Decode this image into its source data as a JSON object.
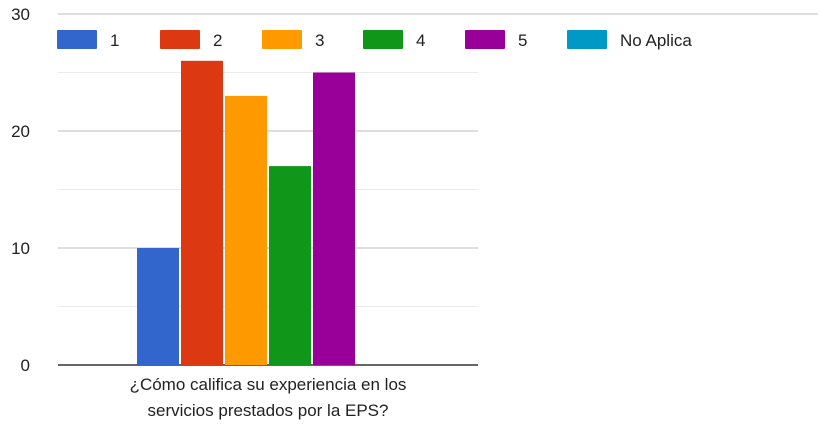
{
  "chart_data": {
    "type": "bar",
    "categories": [
      "¿Cómo califica su experiencia en los servicios prestados por la EPS?"
    ],
    "category_label_lines": [
      "¿Cómo califica su experiencia en los",
      "servicios prestados por la EPS?"
    ],
    "series": [
      {
        "name": "1",
        "values": [
          10
        ],
        "color": "#3366cc"
      },
      {
        "name": "2",
        "values": [
          26
        ],
        "color": "#dc3912"
      },
      {
        "name": "3",
        "values": [
          23
        ],
        "color": "#ff9900"
      },
      {
        "name": "4",
        "values": [
          17
        ],
        "color": "#109618"
      },
      {
        "name": "5",
        "values": [
          25
        ],
        "color": "#990099"
      },
      {
        "name": "No Aplica",
        "values": [
          0
        ],
        "color": "#0099c6"
      }
    ],
    "y_ticks": [
      0,
      10,
      20,
      30
    ],
    "ylim": [
      0,
      30
    ],
    "grid": true,
    "legend_position": "top",
    "title": "",
    "xlabel": "",
    "ylabel": ""
  }
}
